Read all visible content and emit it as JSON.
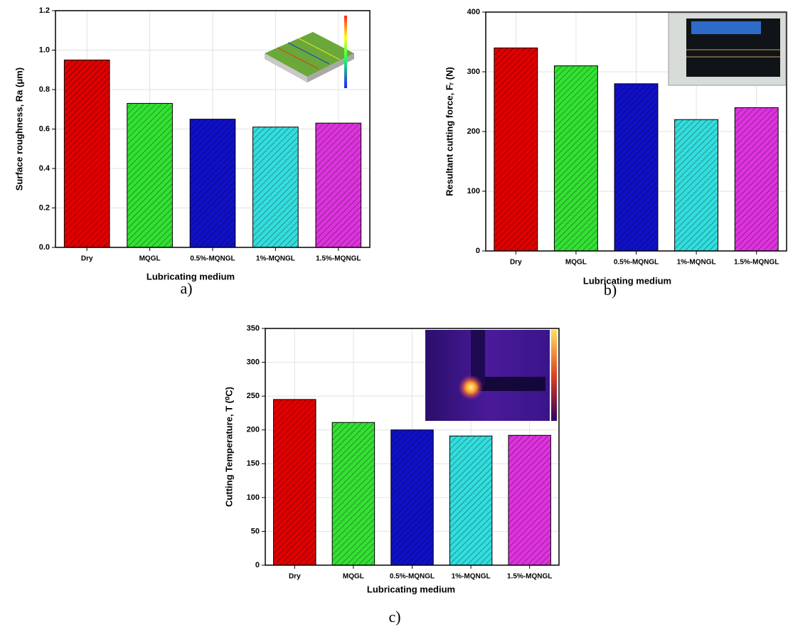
{
  "chart_data": [
    {
      "type": "bar",
      "panel": "a)",
      "xlabel": "Lubricating medium",
      "ylabel": "Surface roughness, Ra (μm)",
      "categories": [
        "Dry",
        "MQGL",
        "0.5%-MQNGL",
        "1%-MQNGL",
        "1.5%-MQNGL"
      ],
      "values": [
        0.95,
        0.73,
        0.65,
        0.61,
        0.63
      ],
      "colors": [
        "#e00000",
        "#33e033",
        "#1010c8",
        "#33dddd",
        "#dd33dd"
      ],
      "ylim": [
        0,
        1.2
      ],
      "yticks": [
        {
          "value": 0,
          "label": "0.0"
        },
        0.2,
        0.4,
        0.6,
        0.8,
        {
          "value": 1,
          "label": "1.0"
        },
        1.2
      ],
      "grid": true
    },
    {
      "type": "bar",
      "panel": "b)",
      "xlabel": "Lubricating medium",
      "ylabel": "Resultant cutting force, Fᵣ (N)",
      "categories": [
        "Dry",
        "MQGL",
        "0.5%-MQNGL",
        "1%-MQNGL",
        "1.5%-MQNGL"
      ],
      "values": [
        340,
        310,
        280,
        220,
        240
      ],
      "colors": [
        "#e00000",
        "#33e033",
        "#1010c8",
        "#33dddd",
        "#dd33dd"
      ],
      "ylim": [
        0,
        400
      ],
      "yticks": [
        0,
        100,
        200,
        300,
        400
      ],
      "grid": true
    },
    {
      "type": "bar",
      "panel": "c)",
      "xlabel": "Lubricating medium",
      "ylabel": "Cutting Temperature, T (⁰C)",
      "categories": [
        "Dry",
        "MQGL",
        "0.5%-MQNGL",
        "1%-MQNGL",
        "1.5%-MQNGL"
      ],
      "values": [
        245,
        211,
        200,
        191,
        192
      ],
      "colors": [
        "#e00000",
        "#33e033",
        "#1010c8",
        "#33dddd",
        "#dd33dd"
      ],
      "ylim": [
        0,
        350
      ],
      "yticks": [
        0,
        50,
        100,
        150,
        200,
        250,
        300,
        350
      ],
      "grid": true
    }
  ]
}
